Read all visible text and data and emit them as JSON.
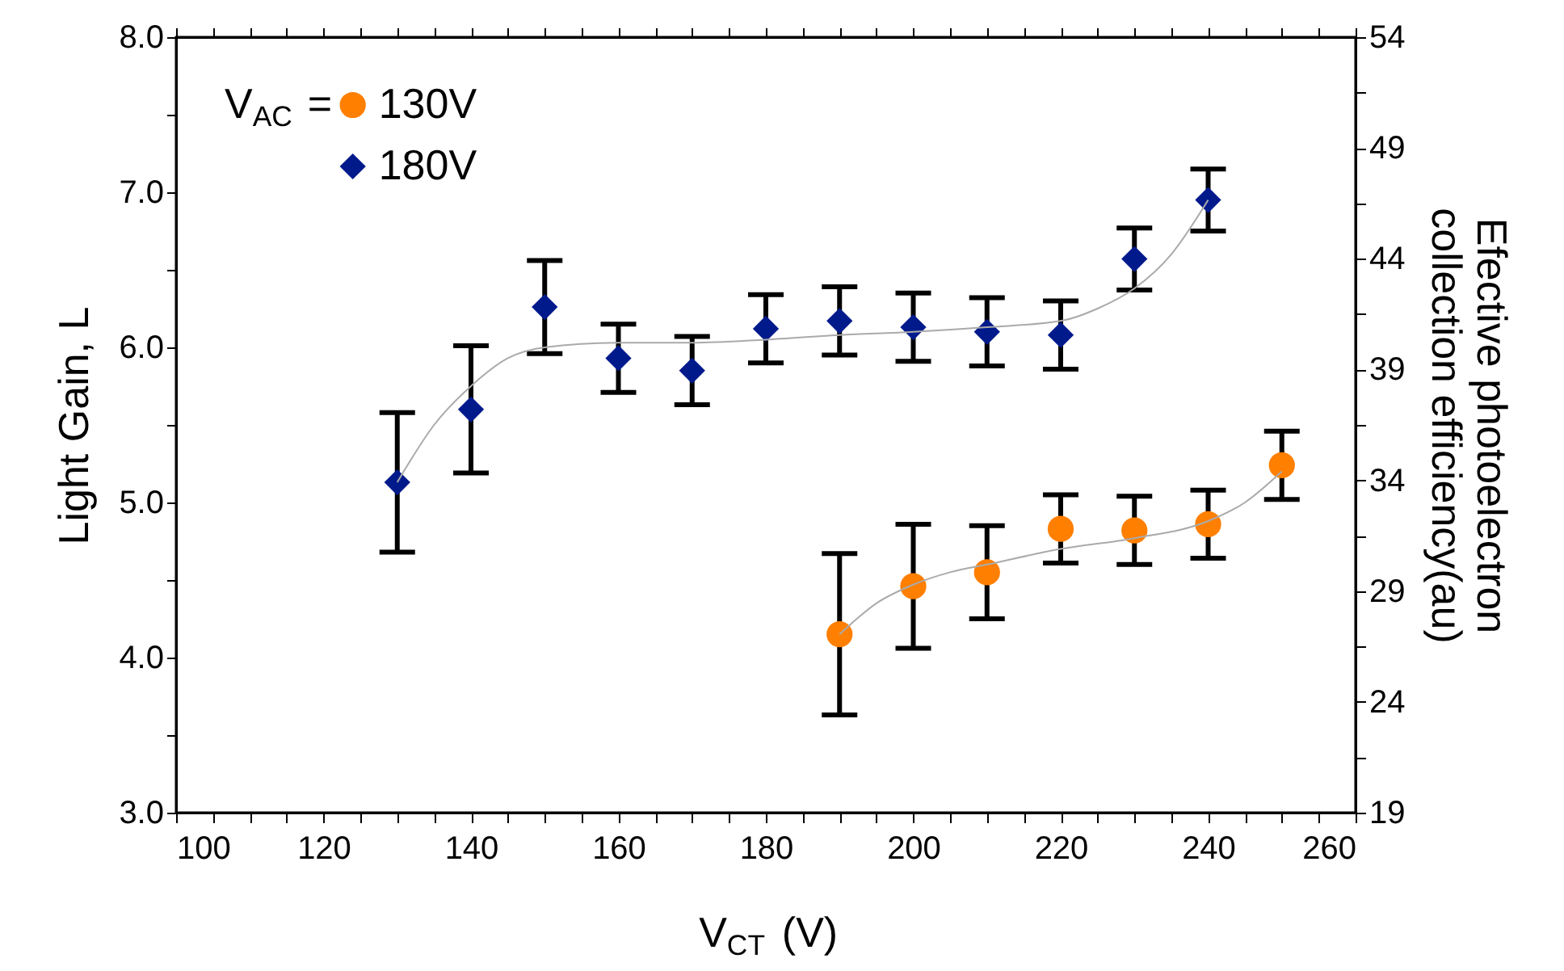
{
  "chart_data": {
    "type": "scatter",
    "xlabel": "V$_{CT}$ (V)",
    "ylabel": "Light Gain, L",
    "y2label": "Efective photoelectron\ncollection efficiency(au)",
    "legend_title": "V$_{AC}$ =",
    "legend": "top left",
    "grid": false,
    "xlim": [
      100,
      260
    ],
    "xticks": [
      100,
      {
        "value": 105,
        "label": null
      },
      {
        "value": 110,
        "label": null
      },
      {
        "value": 115,
        "label": null
      },
      120,
      {
        "value": 125,
        "label": null
      },
      {
        "value": 130,
        "label": null
      },
      {
        "value": 135,
        "label": null
      },
      140,
      {
        "value": 145,
        "label": null
      },
      {
        "value": 150,
        "label": null
      },
      {
        "value": 155,
        "label": null
      },
      160,
      {
        "value": 165,
        "label": null
      },
      {
        "value": 170,
        "label": null
      },
      {
        "value": 175,
        "label": null
      },
      180,
      {
        "value": 185,
        "label": null
      },
      {
        "value": 190,
        "label": null
      },
      {
        "value": 195,
        "label": null
      },
      200,
      {
        "value": 205,
        "label": null
      },
      {
        "value": 210,
        "label": null
      },
      {
        "value": 215,
        "label": null
      },
      220,
      {
        "value": 225,
        "label": null
      },
      {
        "value": 230,
        "label": null
      },
      {
        "value": 235,
        "label": null
      },
      240,
      {
        "value": 245,
        "label": null
      },
      {
        "value": 250,
        "label": null
      },
      {
        "value": 255,
        "label": null
      },
      260
    ],
    "ylim": [
      3,
      8
    ],
    "yticks": [
      {
        "value": 3,
        "label": "3.0"
      },
      {
        "value": 3.5,
        "label": null
      },
      {
        "value": 4,
        "label": "4.0"
      },
      {
        "value": 4.5,
        "label": null
      },
      {
        "value": 5,
        "label": "5.0"
      },
      {
        "value": 5.5,
        "label": null
      },
      {
        "value": 6,
        "label": "6.0"
      },
      {
        "value": 6.5,
        "label": null
      },
      {
        "value": 7,
        "label": "7.0"
      },
      {
        "value": 7.5,
        "label": null
      },
      {
        "value": 8,
        "label": "8.0"
      }
    ],
    "y2lim": [
      19,
      54
    ],
    "y2ticks": [
      19,
      {
        "value": 21.5,
        "label": null
      },
      24,
      {
        "value": 26.5,
        "label": null
      },
      29,
      {
        "value": 31.5,
        "label": null
      },
      34,
      {
        "value": 36.5,
        "label": null
      },
      39,
      {
        "value": 41.5,
        "label": null
      },
      44,
      {
        "value": 46.5,
        "label": null
      },
      49,
      {
        "value": 51.5,
        "label": null
      },
      54
    ],
    "series": [
      {
        "name": "130V",
        "color": "#ff7f00",
        "marker": "circle",
        "x": [
          190,
          200,
          210,
          220,
          230,
          240,
          250
        ],
        "values": [
          4.15,
          4.46,
          4.55,
          4.83,
          4.82,
          4.86,
          5.24
        ],
        "errors": [
          0.52,
          0.4,
          0.3,
          0.22,
          0.22,
          0.22,
          0.22
        ]
      },
      {
        "name": "180V",
        "color": "#001a8c",
        "marker": "diamond",
        "x": [
          130,
          140,
          150,
          160,
          170,
          180,
          190,
          200,
          210,
          220,
          230,
          240
        ],
        "values": [
          5.13,
          5.6,
          6.26,
          5.93,
          5.85,
          6.12,
          6.17,
          6.13,
          6.1,
          6.08,
          6.57,
          6.95
        ],
        "errors": [
          0.45,
          0.41,
          0.3,
          0.22,
          0.22,
          0.22,
          0.22,
          0.22,
          0.22,
          0.22,
          0.2,
          0.2
        ]
      },
      {
        "type": "line",
        "color": "#aaaaaa",
        "x": [
          190,
          195,
          200,
          205,
          210,
          220,
          230,
          240,
          245,
          250
        ],
        "values": [
          4.15,
          4.35,
          4.47,
          4.55,
          4.6,
          4.7,
          4.77,
          4.88,
          5.0,
          5.2
        ]
      },
      {
        "type": "line",
        "color": "#aaaaaa",
        "x": [
          130,
          135,
          140,
          145,
          150,
          160,
          170,
          180,
          190,
          200,
          210,
          220,
          225,
          230,
          235,
          240
        ],
        "values": [
          5.13,
          5.5,
          5.75,
          5.93,
          6.0,
          6.03,
          6.03,
          6.05,
          6.08,
          6.1,
          6.13,
          6.17,
          6.25,
          6.38,
          6.6,
          6.95
        ]
      }
    ]
  }
}
